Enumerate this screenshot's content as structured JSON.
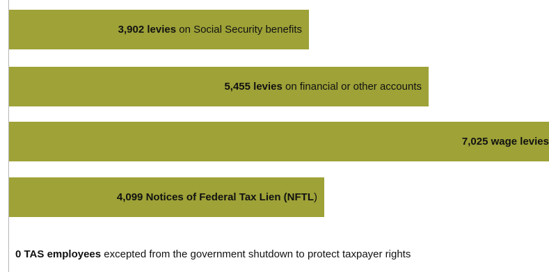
{
  "chart_data": {
    "type": "bar",
    "orientation": "horizontal",
    "xlim": [
      0,
      7025
    ],
    "bar_color": "#9ea237",
    "bars": [
      {
        "value": 3902,
        "bold": "3,902 levies",
        "rest": " on Social Security benefits"
      },
      {
        "value": 5455,
        "bold": "5,455 levies",
        "rest": " on financial or other accounts"
      },
      {
        "value": 7025,
        "bold": "7,025 wage levies",
        "rest": ""
      },
      {
        "value": 4099,
        "bold": "4,099 Notices of Federal Tax Lien (",
        "bold2": "NFTL",
        "rest2": ")"
      },
      {
        "value": 0,
        "bold": "0 TAS employees",
        "rest": " excepted from the government shutdown to protect taxpayer rights"
      }
    ]
  }
}
